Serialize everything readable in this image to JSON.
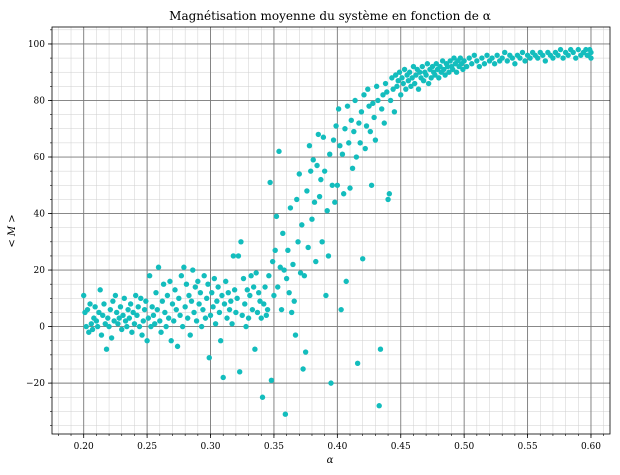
{
  "chart_data": {
    "type": "scatter",
    "title": "Magnétisation moyenne du système en fonction de α",
    "xlabel": "α",
    "ylabel": "< M >",
    "xlim": [
      0.175,
      0.615
    ],
    "ylim": [
      -38,
      106
    ],
    "xticks": [
      0.2,
      0.25,
      0.3,
      0.35,
      0.4,
      0.45,
      0.5,
      0.55,
      0.6
    ],
    "xtick_labels": [
      "0.20",
      "0.25",
      "0.30",
      "0.35",
      "0.40",
      "0.45",
      "0.50",
      "0.55",
      "0.60"
    ],
    "yticks": [
      -20,
      0,
      20,
      40,
      60,
      80,
      100
    ],
    "ytick_labels": [
      "−20",
      "0",
      "20",
      "40",
      "60",
      "80",
      "100"
    ],
    "grid": "major and minor",
    "marker_color": "#13bdbd",
    "points": [
      [
        0.2,
        11
      ],
      [
        0.201,
        5
      ],
      [
        0.202,
        0
      ],
      [
        0.203,
        6
      ],
      [
        0.204,
        -2
      ],
      [
        0.205,
        8
      ],
      [
        0.206,
        1
      ],
      [
        0.207,
        -1
      ],
      [
        0.208,
        3
      ],
      [
        0.209,
        7
      ],
      [
        0.21,
        2
      ],
      [
        0.211,
        0
      ],
      [
        0.212,
        5
      ],
      [
        0.213,
        13
      ],
      [
        0.214,
        -3
      ],
      [
        0.215,
        4
      ],
      [
        0.216,
        8
      ],
      [
        0.217,
        1
      ],
      [
        0.218,
        -8
      ],
      [
        0.219,
        3
      ],
      [
        0.22,
        0
      ],
      [
        0.221,
        6
      ],
      [
        0.222,
        -4
      ],
      [
        0.223,
        9
      ],
      [
        0.224,
        2
      ],
      [
        0.225,
        11
      ],
      [
        0.226,
        5
      ],
      [
        0.227,
        1
      ],
      [
        0.228,
        3
      ],
      [
        0.229,
        7
      ],
      [
        0.23,
        -1
      ],
      [
        0.231,
        4
      ],
      [
        0.232,
        10
      ],
      [
        0.233,
        2
      ],
      [
        0.234,
        0
      ],
      [
        0.235,
        6
      ],
      [
        0.236,
        3
      ],
      [
        0.237,
        8
      ],
      [
        0.238,
        -2
      ],
      [
        0.239,
        5
      ],
      [
        0.24,
        1
      ],
      [
        0.241,
        11
      ],
      [
        0.242,
        4
      ],
      [
        0.243,
        7
      ],
      [
        0.244,
        0
      ],
      [
        0.245,
        10
      ],
      [
        0.246,
        -3
      ],
      [
        0.247,
        2
      ],
      [
        0.248,
        6
      ],
      [
        0.249,
        9
      ],
      [
        0.25,
        -5
      ],
      [
        0.251,
        3
      ],
      [
        0.252,
        18
      ],
      [
        0.253,
        0
      ],
      [
        0.254,
        7
      ],
      [
        0.255,
        4
      ],
      [
        0.256,
        1
      ],
      [
        0.257,
        12
      ],
      [
        0.258,
        6
      ],
      [
        0.259,
        21
      ],
      [
        0.26,
        2
      ],
      [
        0.261,
        -2
      ],
      [
        0.262,
        9
      ],
      [
        0.263,
        15
      ],
      [
        0.264,
        5
      ],
      [
        0.265,
        0
      ],
      [
        0.266,
        11
      ],
      [
        0.267,
        3
      ],
      [
        0.268,
        16
      ],
      [
        0.269,
        -5
      ],
      [
        0.27,
        8
      ],
      [
        0.271,
        2
      ],
      [
        0.272,
        13
      ],
      [
        0.273,
        6
      ],
      [
        0.274,
        -7
      ],
      [
        0.275,
        10
      ],
      [
        0.276,
        4
      ],
      [
        0.277,
        18
      ],
      [
        0.278,
        0
      ],
      [
        0.279,
        21
      ],
      [
        0.28,
        7
      ],
      [
        0.281,
        15
      ],
      [
        0.282,
        3
      ],
      [
        0.283,
        11
      ],
      [
        0.284,
        -3
      ],
      [
        0.285,
        9
      ],
      [
        0.286,
        20
      ],
      [
        0.287,
        5
      ],
      [
        0.288,
        14
      ],
      [
        0.289,
        2
      ],
      [
        0.29,
        16
      ],
      [
        0.291,
        8
      ],
      [
        0.292,
        12
      ],
      [
        0.293,
        0
      ],
      [
        0.294,
        6
      ],
      [
        0.295,
        18
      ],
      [
        0.296,
        3
      ],
      [
        0.297,
        10
      ],
      [
        0.298,
        15
      ],
      [
        0.299,
        -11
      ],
      [
        0.3,
        4
      ],
      [
        0.301,
        12
      ],
      [
        0.302,
        7
      ],
      [
        0.303,
        17
      ],
      [
        0.304,
        1
      ],
      [
        0.305,
        9
      ],
      [
        0.306,
        14
      ],
      [
        0.307,
        5
      ],
      [
        0.308,
        -5
      ],
      [
        0.309,
        11
      ],
      [
        0.31,
        -18
      ],
      [
        0.311,
        8
      ],
      [
        0.312,
        16
      ],
      [
        0.313,
        3
      ],
      [
        0.314,
        12
      ],
      [
        0.315,
        6
      ],
      [
        0.316,
        9
      ],
      [
        0.317,
        1
      ],
      [
        0.318,
        25
      ],
      [
        0.319,
        13
      ],
      [
        0.32,
        5
      ],
      [
        0.321,
        10
      ],
      [
        0.322,
        25
      ],
      [
        0.323,
        -16
      ],
      [
        0.324,
        30
      ],
      [
        0.325,
        4
      ],
      [
        0.326,
        17
      ],
      [
        0.327,
        8
      ],
      [
        0.328,
        0
      ],
      [
        0.329,
        13
      ],
      [
        0.33,
        3
      ],
      [
        0.331,
        11
      ],
      [
        0.332,
        18
      ],
      [
        0.333,
        6
      ],
      [
        0.334,
        14
      ],
      [
        0.335,
        -8
      ],
      [
        0.336,
        19
      ],
      [
        0.337,
        5
      ],
      [
        0.338,
        12
      ],
      [
        0.339,
        9
      ],
      [
        0.34,
        3
      ],
      [
        0.341,
        -25
      ],
      [
        0.342,
        8
      ],
      [
        0.343,
        14
      ],
      [
        0.344,
        4
      ],
      [
        0.345,
        6
      ],
      [
        0.346,
        18
      ],
      [
        0.347,
        51
      ],
      [
        0.348,
        -19
      ],
      [
        0.349,
        23
      ],
      [
        0.35,
        11
      ],
      [
        0.351,
        27
      ],
      [
        0.352,
        39
      ],
      [
        0.353,
        14
      ],
      [
        0.354,
        62
      ],
      [
        0.355,
        21
      ],
      [
        0.356,
        6
      ],
      [
        0.357,
        33
      ],
      [
        0.358,
        20
      ],
      [
        0.359,
        -31
      ],
      [
        0.36,
        17
      ],
      [
        0.361,
        27
      ],
      [
        0.362,
        12
      ],
      [
        0.363,
        42
      ],
      [
        0.364,
        5
      ],
      [
        0.365,
        22
      ],
      [
        0.366,
        9
      ],
      [
        0.367,
        -3
      ],
      [
        0.368,
        45
      ],
      [
        0.369,
        30
      ],
      [
        0.37,
        54
      ],
      [
        0.371,
        19
      ],
      [
        0.372,
        36
      ],
      [
        0.373,
        -15
      ],
      [
        0.374,
        18
      ],
      [
        0.375,
        -9
      ],
      [
        0.376,
        48
      ],
      [
        0.377,
        28
      ],
      [
        0.378,
        64
      ],
      [
        0.379,
        55
      ],
      [
        0.38,
        38
      ],
      [
        0.381,
        59
      ],
      [
        0.382,
        44
      ],
      [
        0.383,
        23
      ],
      [
        0.384,
        57
      ],
      [
        0.385,
        68
      ],
      [
        0.386,
        46
      ],
      [
        0.387,
        52
      ],
      [
        0.388,
        30
      ],
      [
        0.389,
        67
      ],
      [
        0.39,
        55
      ],
      [
        0.391,
        11
      ],
      [
        0.392,
        41
      ],
      [
        0.393,
        25
      ],
      [
        0.394,
        61
      ],
      [
        0.395,
        -20
      ],
      [
        0.396,
        50
      ],
      [
        0.397,
        66
      ],
      [
        0.398,
        44
      ],
      [
        0.399,
        71
      ],
      [
        0.4,
        50
      ],
      [
        0.401,
        77
      ],
      [
        0.402,
        64
      ],
      [
        0.403,
        6
      ],
      [
        0.404,
        61
      ],
      [
        0.405,
        47
      ],
      [
        0.406,
        70
      ],
      [
        0.407,
        16
      ],
      [
        0.408,
        78
      ],
      [
        0.409,
        65
      ],
      [
        0.41,
        49
      ],
      [
        0.411,
        73
      ],
      [
        0.412,
        56
      ],
      [
        0.413,
        69
      ],
      [
        0.414,
        80
      ],
      [
        0.415,
        60
      ],
      [
        0.416,
        -13
      ],
      [
        0.417,
        72
      ],
      [
        0.418,
        65
      ],
      [
        0.419,
        76
      ],
      [
        0.42,
        24
      ],
      [
        0.421,
        82
      ],
      [
        0.422,
        63
      ],
      [
        0.423,
        71
      ],
      [
        0.424,
        84
      ],
      [
        0.425,
        78
      ],
      [
        0.426,
        69
      ],
      [
        0.427,
        50
      ],
      [
        0.428,
        79
      ],
      [
        0.429,
        74
      ],
      [
        0.43,
        66
      ],
      [
        0.431,
        85
      ],
      [
        0.432,
        80
      ],
      [
        0.433,
        -28
      ],
      [
        0.434,
        -8
      ],
      [
        0.435,
        77
      ],
      [
        0.436,
        82
      ],
      [
        0.437,
        72
      ],
      [
        0.438,
        86
      ],
      [
        0.439,
        83
      ],
      [
        0.44,
        45
      ],
      [
        0.441,
        47
      ],
      [
        0.442,
        80
      ],
      [
        0.443,
        88
      ],
      [
        0.444,
        84
      ],
      [
        0.445,
        76
      ],
      [
        0.446,
        89
      ],
      [
        0.447,
        85
      ],
      [
        0.448,
        87
      ],
      [
        0.449,
        90
      ],
      [
        0.45,
        82
      ],
      [
        0.451,
        88
      ],
      [
        0.452,
        86
      ],
      [
        0.453,
        91
      ],
      [
        0.454,
        84
      ],
      [
        0.455,
        89
      ],
      [
        0.456,
        87
      ],
      [
        0.457,
        90
      ],
      [
        0.458,
        85
      ],
      [
        0.459,
        88
      ],
      [
        0.46,
        92
      ],
      [
        0.461,
        86
      ],
      [
        0.462,
        89
      ],
      [
        0.463,
        91
      ],
      [
        0.464,
        84
      ],
      [
        0.465,
        90
      ],
      [
        0.466,
        88
      ],
      [
        0.467,
        92
      ],
      [
        0.468,
        87
      ],
      [
        0.469,
        90
      ],
      [
        0.47,
        89
      ],
      [
        0.471,
        93
      ],
      [
        0.472,
        86
      ],
      [
        0.473,
        91
      ],
      [
        0.474,
        88
      ],
      [
        0.475,
        92
      ],
      [
        0.476,
        90
      ],
      [
        0.477,
        89
      ],
      [
        0.478,
        93
      ],
      [
        0.479,
        91
      ],
      [
        0.48,
        88
      ],
      [
        0.481,
        92
      ],
      [
        0.482,
        90
      ],
      [
        0.483,
        94
      ],
      [
        0.484,
        91
      ],
      [
        0.485,
        89
      ],
      [
        0.486,
        93
      ],
      [
        0.487,
        92
      ],
      [
        0.488,
        90
      ],
      [
        0.489,
        94
      ],
      [
        0.49,
        92
      ],
      [
        0.491,
        91
      ],
      [
        0.492,
        95
      ],
      [
        0.493,
        93
      ],
      [
        0.494,
        90
      ],
      [
        0.495,
        94
      ],
      [
        0.496,
        92
      ],
      [
        0.497,
        95
      ],
      [
        0.498,
        93
      ],
      [
        0.499,
        91
      ],
      [
        0.5,
        94
      ],
      [
        0.502,
        92
      ],
      [
        0.504,
        95
      ],
      [
        0.506,
        93
      ],
      [
        0.508,
        96
      ],
      [
        0.51,
        94
      ],
      [
        0.512,
        92
      ],
      [
        0.514,
        95
      ],
      [
        0.516,
        93
      ],
      [
        0.518,
        96
      ],
      [
        0.52,
        94
      ],
      [
        0.522,
        95
      ],
      [
        0.524,
        93
      ],
      [
        0.526,
        96
      ],
      [
        0.528,
        94
      ],
      [
        0.53,
        95
      ],
      [
        0.532,
        97
      ],
      [
        0.534,
        94
      ],
      [
        0.536,
        96
      ],
      [
        0.538,
        95
      ],
      [
        0.54,
        93
      ],
      [
        0.542,
        96
      ],
      [
        0.544,
        95
      ],
      [
        0.546,
        97
      ],
      [
        0.548,
        94
      ],
      [
        0.55,
        96
      ],
      [
        0.552,
        95
      ],
      [
        0.554,
        97
      ],
      [
        0.556,
        96
      ],
      [
        0.558,
        95
      ],
      [
        0.56,
        97
      ],
      [
        0.562,
        96
      ],
      [
        0.564,
        94
      ],
      [
        0.566,
        97
      ],
      [
        0.568,
        96
      ],
      [
        0.57,
        95
      ],
      [
        0.572,
        97
      ],
      [
        0.574,
        96
      ],
      [
        0.576,
        98
      ],
      [
        0.578,
        95
      ],
      [
        0.58,
        97
      ],
      [
        0.582,
        96
      ],
      [
        0.584,
        98
      ],
      [
        0.586,
        97
      ],
      [
        0.588,
        95
      ],
      [
        0.59,
        98
      ],
      [
        0.592,
        96
      ],
      [
        0.594,
        97
      ],
      [
        0.596,
        98
      ],
      [
        0.598,
        96
      ],
      [
        0.6,
        97
      ],
      [
        0.6,
        95
      ],
      [
        0.599,
        98
      ],
      [
        0.597,
        96
      ]
    ]
  }
}
